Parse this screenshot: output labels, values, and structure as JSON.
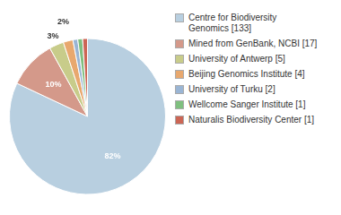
{
  "chart_data": {
    "type": "pie",
    "categories": [
      "Centre for Biodiversity\nGenomics [133]",
      "Mined from GenBank, NCBI [17]",
      "University of Antwerp [5]",
      "Beijing Genomics Institute [4]",
      "University of Turku [2]",
      "Wellcome Sanger Institute [1]",
      "Naturalis Biodiversity Center [1]"
    ],
    "values": [
      82,
      10,
      3,
      2,
      1,
      1,
      1
    ],
    "value_labels": [
      "82%",
      "10%",
      "3%",
      "2%",
      null,
      null,
      null
    ],
    "colors": [
      "#b8cfe0",
      "#d4998a",
      "#c8cc8a",
      "#e8a86e",
      "#9ab5d4",
      "#7fbf7f",
      "#cc6655"
    ],
    "data_labels": true,
    "legend": "right"
  }
}
